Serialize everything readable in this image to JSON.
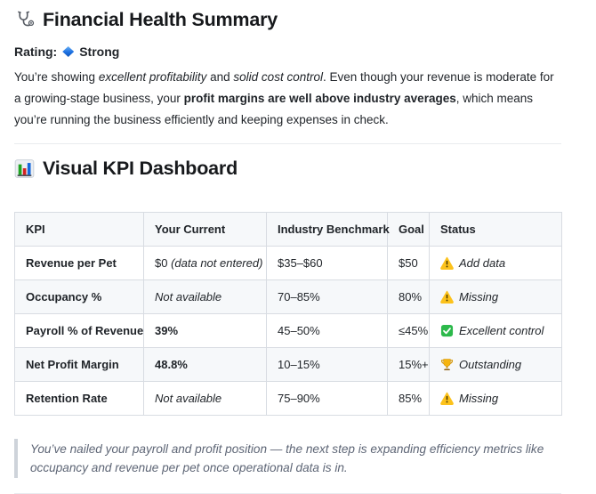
{
  "header": {
    "title": "Financial Health Summary",
    "title_icon": "stethoscope-icon",
    "rating_label": "Rating:",
    "rating_icon": "blue-diamond-icon",
    "rating_value": "Strong"
  },
  "intro_segments": [
    {
      "t": "You’re showing ",
      "s": "n"
    },
    {
      "t": "excellent profitability",
      "s": "i"
    },
    {
      "t": " and ",
      "s": "n"
    },
    {
      "t": "solid cost control",
      "s": "i"
    },
    {
      "t": ". Even though your revenue is moderate for a growing-stage business, your ",
      "s": "n"
    },
    {
      "t": "profit margins are well above industry averages",
      "s": "b"
    },
    {
      "t": ", which means you’re running the business efficiently and keeping expenses in check.",
      "s": "n"
    }
  ],
  "dashboard": {
    "title": "Visual KPI Dashboard",
    "title_icon": "bar-chart-icon"
  },
  "table": {
    "headers": [
      "KPI",
      "Your Current",
      "Industry Benchmark",
      "Goal",
      "Status"
    ],
    "rows": [
      {
        "kpi": "Revenue per Pet",
        "current": [
          {
            "t": "$0 ",
            "s": "n"
          },
          {
            "t": "(data not entered)",
            "s": "i"
          }
        ],
        "benchmark": "$35–$60",
        "goal": "$50",
        "status_icon": "warning-icon",
        "status": "Add data"
      },
      {
        "kpi": "Occupancy %",
        "current": [
          {
            "t": "Not available",
            "s": "i"
          }
        ],
        "benchmark": "70–85%",
        "goal": "80%",
        "status_icon": "warning-icon",
        "status": "Missing"
      },
      {
        "kpi": "Payroll % of Revenue",
        "current": [
          {
            "t": "39%",
            "s": "b"
          }
        ],
        "benchmark": "45–50%",
        "goal": "≤45%",
        "status_icon": "check-icon",
        "status": "Excellent control"
      },
      {
        "kpi": "Net Profit Margin",
        "current": [
          {
            "t": "48.8%",
            "s": "b"
          }
        ],
        "benchmark": "10–15%",
        "goal": "15%+",
        "status_icon": "trophy-icon",
        "status": "Outstanding"
      },
      {
        "kpi": "Retention Rate",
        "current": [
          {
            "t": "Not available",
            "s": "i"
          }
        ],
        "benchmark": "75–90%",
        "goal": "85%",
        "status_icon": "warning-icon",
        "status": "Missing"
      }
    ]
  },
  "quote": "You’ve nailed your payroll and profit position — the next step is expanding efficiency metrics like occupancy and revenue per pet once operational data is in.",
  "colors": {
    "text": "#1f2328",
    "table_border": "#d8dce2",
    "zebra_bg": "#f6f8fa",
    "rule": "#e9ebef",
    "quote_text": "#5d6575",
    "quote_bar": "#ced3da",
    "diamond_blue": "#1c70e2",
    "warning_yellow": "#fcc21c",
    "check_green": "#2cb94b",
    "trophy_gold": "#f2a93b"
  }
}
